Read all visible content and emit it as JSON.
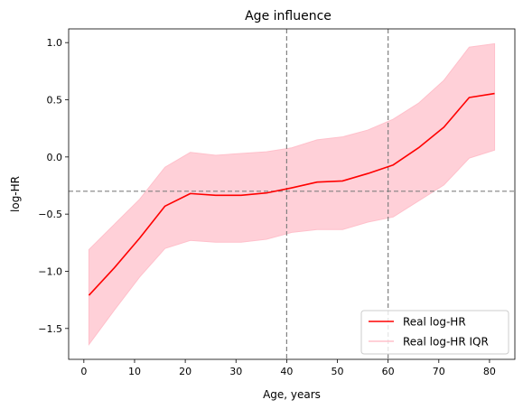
{
  "chart_data": {
    "type": "line",
    "title": "Age influence",
    "xlabel": "Age, years",
    "ylabel": "log-HR",
    "xlim": [
      -3,
      85
    ],
    "ylim": [
      -1.77,
      1.12
    ],
    "xticks": [
      0,
      10,
      20,
      30,
      40,
      50,
      60,
      70,
      80
    ],
    "yticks": [
      -1.5,
      -1.0,
      -0.5,
      0.0,
      0.5,
      1.0
    ],
    "ytick_labels": [
      "−1.5",
      "−1.0",
      "−0.5",
      "0.0",
      "0.5",
      "1.0"
    ],
    "grid": false,
    "legend_position": "lower-right",
    "reference_lines": {
      "vertical_x": [
        40,
        60
      ],
      "horizontal_y": [
        -0.3
      ],
      "color": "#808080",
      "style": "dashed"
    },
    "x": [
      1,
      6,
      11,
      16,
      21,
      26,
      31,
      36,
      41,
      46,
      51,
      56,
      61,
      66,
      71,
      76,
      81
    ],
    "series": [
      {
        "name": "Real log-HR",
        "kind": "line",
        "color": "#ff0000",
        "values": [
          -1.21,
          -0.97,
          -0.71,
          -0.43,
          -0.32,
          -0.335,
          -0.335,
          -0.315,
          -0.27,
          -0.22,
          -0.21,
          -0.145,
          -0.07,
          0.08,
          0.26,
          0.52,
          0.555
        ]
      },
      {
        "name": "Real log-HR IQR",
        "kind": "band",
        "color": "#ffc0cb",
        "lower": [
          -1.64,
          -1.34,
          -1.05,
          -0.8,
          -0.73,
          -0.745,
          -0.745,
          -0.72,
          -0.66,
          -0.635,
          -0.635,
          -0.57,
          -0.525,
          -0.385,
          -0.245,
          -0.01,
          0.06
        ],
        "upper": [
          -0.81,
          -0.59,
          -0.37,
          -0.09,
          0.04,
          0.015,
          0.03,
          0.045,
          0.08,
          0.15,
          0.175,
          0.235,
          0.33,
          0.47,
          0.67,
          0.96,
          0.99
        ]
      }
    ]
  }
}
